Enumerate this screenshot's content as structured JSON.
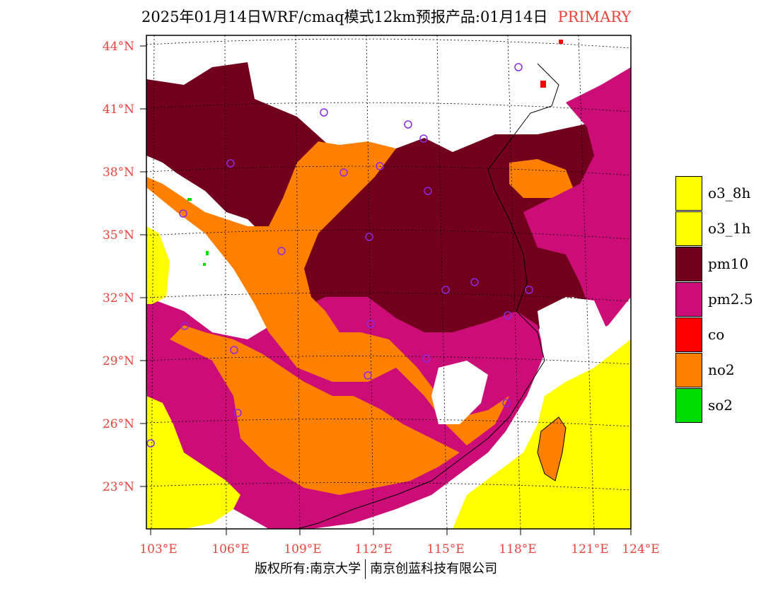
{
  "header": {
    "title": "2025年01月14日WRF/cmaq模式12km预报产品:01月14日",
    "mode_label": "PRIMARY"
  },
  "map": {
    "lat_labels": [
      "44°N",
      "41°N",
      "38°N",
      "35°N",
      "32°N",
      "29°N",
      "26°N",
      "23°N"
    ],
    "lon_labels": [
      "103°E",
      "106°E",
      "109°E",
      "112°E",
      "115°E",
      "118°E",
      "121°E",
      "124°E"
    ],
    "colors": {
      "pm10": "#72001d",
      "pm25": "#cc0d78",
      "no2": "#ff8000",
      "o3": "#ffff00",
      "so2": "#00dd00",
      "co": "#ff0000",
      "ocean": "#ffffff",
      "axis": "#e8443a"
    }
  },
  "legend": {
    "items": [
      {
        "label": "o3_8h",
        "color": "#ffff00"
      },
      {
        "label": "o3_1h",
        "color": "#ffff00"
      },
      {
        "label": "pm10",
        "color": "#72001d"
      },
      {
        "label": "pm2.5",
        "color": "#cc0d78"
      },
      {
        "label": "co",
        "color": "#ff0000"
      },
      {
        "label": "no2",
        "color": "#ff8000"
      },
      {
        "label": "so2",
        "color": "#00dd00"
      }
    ]
  },
  "footer": {
    "left": "版权所有:南京大学",
    "right": "南京创蓝科技有限公司"
  }
}
